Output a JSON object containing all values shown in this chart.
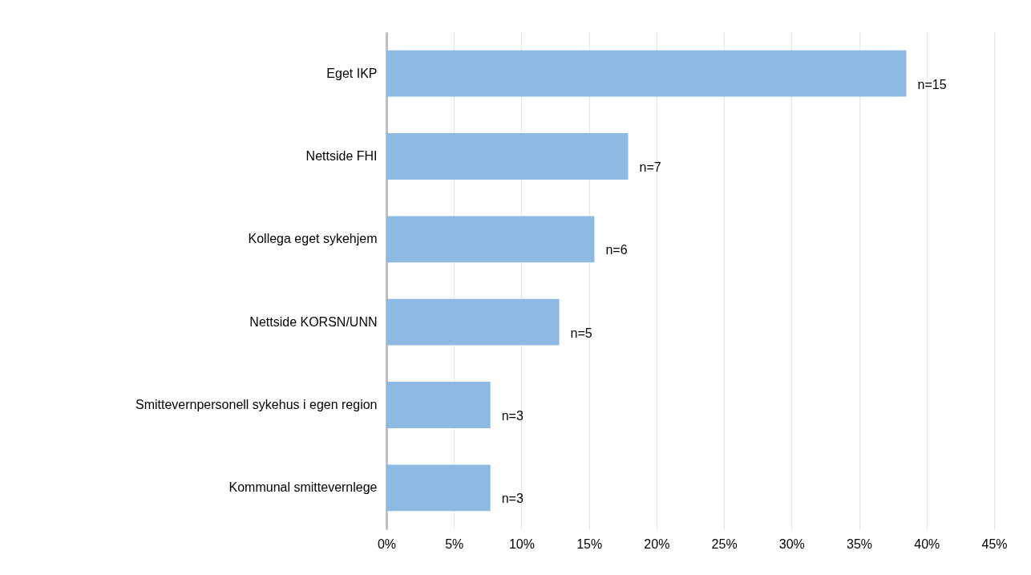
{
  "chart_data": {
    "type": "bar",
    "orientation": "horizontal",
    "categories": [
      "Eget IKP",
      "Nettside FHI",
      "Kollega eget sykehjem",
      "Nettside KORSN/UNN",
      "Smittevernpersonell sykehus i egen region",
      "Kommunal smittevernlege"
    ],
    "values": [
      38.5,
      17.9,
      15.4,
      12.8,
      7.7,
      7.7
    ],
    "annotations": [
      {
        "text": "n=15",
        "x": 38.5,
        "y": "Eget IKP"
      },
      {
        "text": "n=7",
        "x": 17.9,
        "y": "Nettside FHI"
      },
      {
        "text": "n=6",
        "x": 15.4,
        "y": "Kollega eget sykehjem"
      },
      {
        "text": "n=5",
        "x": 12.8,
        "y": "Nettside KORSN/UNN"
      },
      {
        "text": "n=3",
        "x": 7.7,
        "y": "Smittevernpersonell sykehus i egen region"
      },
      {
        "text": "n=3",
        "x": 7.7,
        "y": "Kommunal smittevernlege"
      }
    ],
    "color": "#8db9e2",
    "xlim": [
      0,
      45
    ],
    "xticks": [
      {
        "value": 0,
        "label": "0%"
      },
      {
        "value": 5,
        "label": "5%"
      },
      {
        "value": 10,
        "label": "10%"
      },
      {
        "value": 15,
        "label": "15%"
      },
      {
        "value": 20,
        "label": "20%"
      },
      {
        "value": 25,
        "label": "25%"
      },
      {
        "value": 30,
        "label": "30%"
      },
      {
        "value": 35,
        "label": "35%"
      },
      {
        "value": 40,
        "label": "40%"
      },
      {
        "value": 45,
        "label": "45%"
      }
    ],
    "grid": "x"
  }
}
